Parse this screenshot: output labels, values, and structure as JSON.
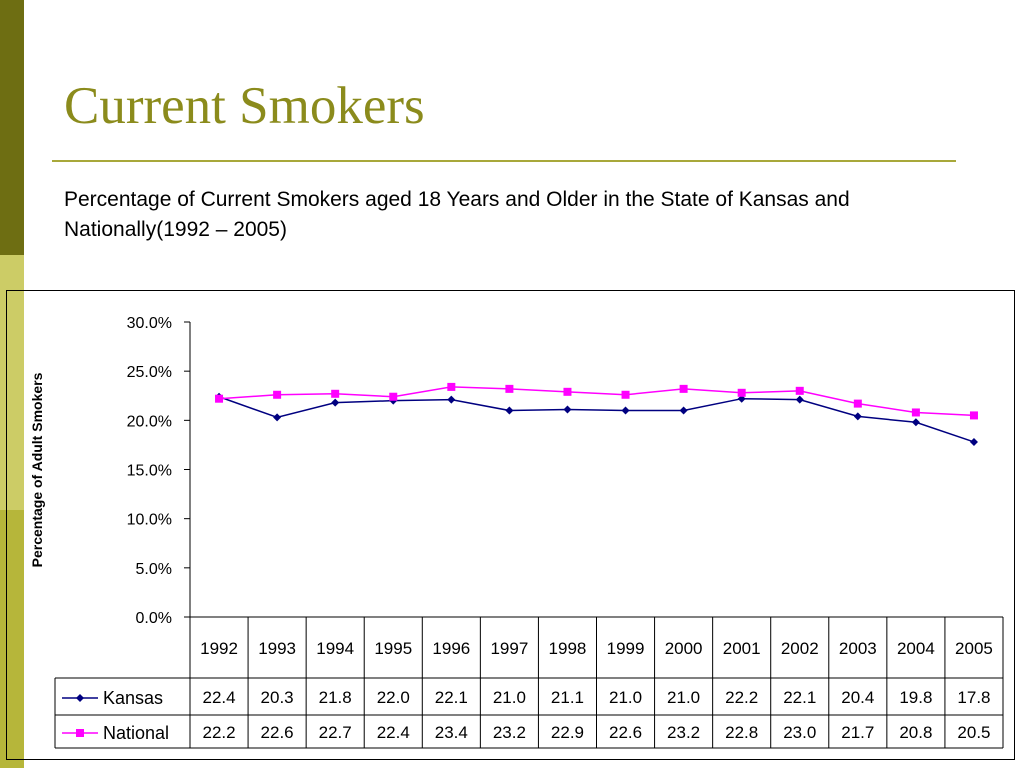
{
  "slide": {
    "title": "Current Smokers",
    "subtitle": "Percentage of Current Smokers aged 18 Years and Older in the State of Kansas and Nationally(1992 – 2005)"
  },
  "colors": {
    "kansas": "#000080",
    "national": "#ff00ff",
    "title": "#8b8b1c",
    "accent_dark": "#6e6e12",
    "accent_light": "#cccc66"
  },
  "chart_data": {
    "type": "line",
    "title": "",
    "xlabel": "",
    "ylabel": "Percentage of Adult Smokers",
    "ylim": [
      0,
      30
    ],
    "yticks": [
      "30.0%",
      "25.0%",
      "20.0%",
      "15.0%",
      "10.0%",
      "5.0%",
      "0.0%"
    ],
    "ytick_values": [
      30,
      25,
      20,
      15,
      10,
      5,
      0
    ],
    "categories": [
      "1992",
      "1993",
      "1994",
      "1995",
      "1996",
      "1997",
      "1998",
      "1999",
      "2000",
      "2001",
      "2002",
      "2003",
      "2004",
      "2005"
    ],
    "grid": false,
    "legend": "data-table",
    "series": [
      {
        "name": "Kansas",
        "marker": "diamond",
        "color": "#000080",
        "values": [
          22.4,
          20.3,
          21.8,
          22.0,
          22.1,
          21.0,
          21.1,
          21.0,
          21.0,
          22.2,
          22.1,
          20.4,
          19.8,
          17.8
        ],
        "labels": [
          "22.4",
          "20.3",
          "21.8",
          "22.0",
          "22.1",
          "21.0",
          "21.1",
          "21.0",
          "21.0",
          "22.2",
          "22.1",
          "20.4",
          "19.8",
          "17.8"
        ]
      },
      {
        "name": "National",
        "marker": "square",
        "color": "#ff00ff",
        "values": [
          22.2,
          22.6,
          22.7,
          22.4,
          23.4,
          23.2,
          22.9,
          22.6,
          23.2,
          22.8,
          23.0,
          21.7,
          20.8,
          20.5
        ],
        "labels": [
          "22.2",
          "22.6",
          "22.7",
          "22.4",
          "23.4",
          "23.2",
          "22.9",
          "22.6",
          "23.2",
          "22.8",
          "23.0",
          "21.7",
          "20.8",
          "20.5"
        ]
      }
    ]
  }
}
